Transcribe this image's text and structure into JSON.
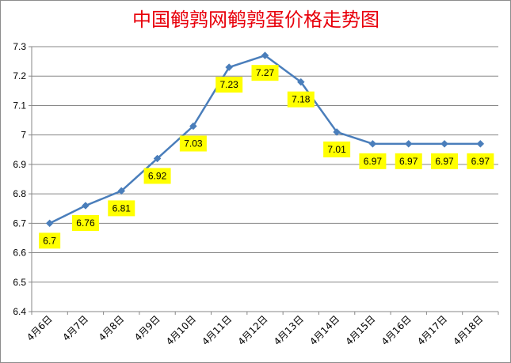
{
  "chart_data": {
    "type": "line",
    "title": "中国鹌鹑网鹌鹑蛋价格走势图",
    "categories": [
      "4月6日",
      "4月7日",
      "4月8日",
      "4月9日",
      "4月10日",
      "4月11日",
      "4月12日",
      "4月13日",
      "4月14日",
      "4月15日",
      "4月16日",
      "4月17日",
      "4月18日"
    ],
    "series": [
      {
        "values": [
          6.7,
          6.76,
          6.81,
          6.92,
          7.03,
          7.23,
          7.27,
          7.18,
          7.01,
          6.97,
          6.97,
          6.97,
          6.97
        ]
      }
    ],
    "data_labels": [
      "6.7",
      "6.76",
      "6.81",
      "6.92",
      "7.03",
      "7.23",
      "7.27",
      "7.18",
      "7.01",
      "6.97",
      "6.97",
      "6.97",
      "6.97"
    ],
    "y_ticks": [
      "6.4",
      "6.5",
      "6.6",
      "6.7",
      "6.8",
      "6.9",
      "7",
      "7.1",
      "7.2",
      "7.3"
    ],
    "ylim": [
      6.4,
      7.3
    ],
    "grid": true,
    "legend": "none",
    "marker": "diamond",
    "colors": {
      "line": "#4a7ebb",
      "label_bg": "#ffff00",
      "title": "#e8000b",
      "grid": "#878787"
    }
  }
}
